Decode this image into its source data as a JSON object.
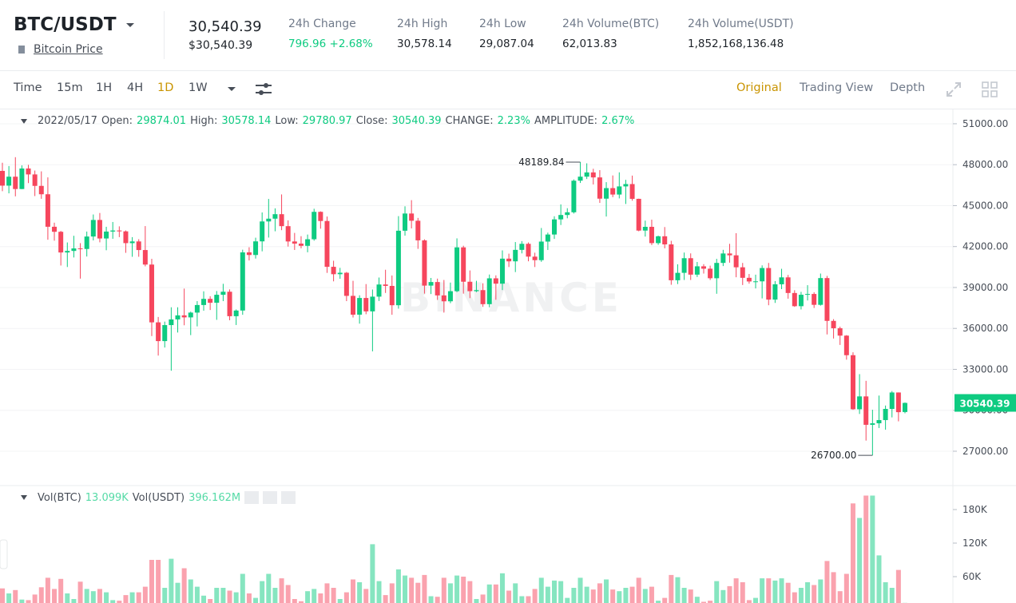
{
  "header": {
    "pair": "BTC/USDT",
    "name": "Bitcoin Price",
    "last_price": "30,540.39",
    "last_price_usd": "$30,540.39",
    "stats": [
      {
        "label": "24h Change",
        "value": "796.96 +2.68%"
      },
      {
        "label": "24h High",
        "value": "30,578.14"
      },
      {
        "label": "24h Low",
        "value": "29,087.04"
      },
      {
        "label": "24h Volume(BTC)",
        "value": "62,013.83"
      },
      {
        "label": "24h Volume(USDT)",
        "value": "1,852,168,136.48"
      }
    ]
  },
  "toolbar": {
    "intervals": [
      "Time",
      "15m",
      "1H",
      "4H",
      "1D",
      "1W"
    ],
    "active_interval": "1D",
    "views": [
      "Original",
      "Trading View",
      "Depth"
    ],
    "active_view": "Original"
  },
  "chart_data": [
    {
      "type": "candlestick",
      "up_color": "#0ecb81",
      "down_color": "#f6465d",
      "grid": true,
      "watermark": "BINANCE",
      "legend": {
        "date": "2022/05/17",
        "open_label": "Open:",
        "high_label": "High:",
        "low_label": "Low:",
        "close_label": "Close:",
        "change_label": "CHANGE:",
        "change": "2.23%",
        "amplitude_label": "AMPLITUDE:",
        "amplitude": "2.67%"
      },
      "open": [
        47545,
        46464,
        47120,
        46216,
        47722,
        47286,
        46446,
        45832,
        43451,
        43082,
        41566,
        41679,
        41864,
        41822,
        42735,
        43949,
        42592,
        43099,
        43177,
        43114,
        42250,
        42375,
        41744,
        40680,
        36445,
        35071,
        36244,
        36660,
        36958,
        36809,
        37160,
        37716,
        38166,
        37881,
        38466,
        38690,
        36896,
        37311,
        41574,
        41382,
        42380,
        43840,
        44043,
        44372,
        43495,
        42373,
        42217,
        42053,
        42535,
        44544,
        43873,
        40515,
        39974,
        40080,
        38386,
        37008,
        38231,
        37250,
        38328,
        39219,
        39116,
        37700,
        43160,
        44421,
        43892,
        42454,
        39137,
        39400,
        38420,
        37988,
        38730,
        41941,
        39422,
        38730,
        38807,
        37778,
        39671,
        39280,
        41114,
        40917,
        41757,
        42201,
        41262,
        41002,
        42364,
        42882,
        43991,
        44313,
        44511,
        46827,
        47122,
        47434,
        47067,
        45510,
        46283,
        45811,
        46407,
        46580,
        45497,
        43170,
        43445,
        42252,
        42753,
        42158,
        39530,
        40074,
        41147,
        39942,
        40552,
        40378,
        39678,
        40801,
        41493,
        41358,
        40480,
        39709,
        39441,
        39450,
        40426,
        38112,
        39235,
        39742,
        38596,
        37630,
        38468,
        38525,
        37729,
        39690,
        36552,
        36013,
        35472,
        34038,
        30076,
        31018,
        28936,
        29047,
        29283,
        30101,
        31305,
        29874.01
      ],
      "high": [
        48140,
        47900,
        48550,
        47950,
        47990,
        47570,
        47510,
        47070,
        43750,
        43145,
        42300,
        42790,
        42250,
        43100,
        44350,
        44460,
        43450,
        43800,
        43480,
        43180,
        42690,
        42540,
        43500,
        41100,
        36840,
        36500,
        37550,
        37550,
        38920,
        37230,
        38000,
        38720,
        38360,
        38740,
        39270,
        38860,
        37390,
        41770,
        41950,
        42650,
        44500,
        45490,
        44800,
        45820,
        43920,
        43000,
        42760,
        42880,
        44770,
        44580,
        44200,
        40960,
        40440,
        40140,
        39490,
        38430,
        39250,
        38850,
        39730,
        40300,
        39880,
        44230,
        44950,
        45400,
        44100,
        42530,
        39700,
        39650,
        39550,
        39360,
        42600,
        42060,
        40250,
        39490,
        39310,
        39950,
        39890,
        41720,
        41480,
        42330,
        42400,
        42300,
        41550,
        43360,
        43020,
        44220,
        45090,
        44810,
        46920,
        48189.84,
        48100,
        47700,
        47600,
        46720,
        47210,
        47440,
        46890,
        47200,
        45510,
        43900,
        43970,
        42800,
        43430,
        42420,
        40700,
        41560,
        41500,
        40870,
        40710,
        40600,
        41100,
        41760,
        42200,
        42980,
        40800,
        39990,
        39940,
        40620,
        40800,
        39470,
        40370,
        39920,
        38800,
        38680,
        39170,
        38650,
        40020,
        39850,
        36680,
        36130,
        35510,
        34250,
        32650,
        32160,
        30040,
        31080,
        30350,
        31410,
        31310,
        30578.14
      ],
      "low": [
        46060,
        45900,
        45680,
        46210,
        46650,
        45700,
        45500,
        42500,
        42430,
        40610,
        40500,
        41200,
        39650,
        41270,
        42450,
        42310,
        41730,
        42570,
        42690,
        41540,
        41250,
        41250,
        40550,
        35440,
        34010,
        34600,
        32900,
        35700,
        36230,
        35510,
        36150,
        37300,
        37350,
        36630,
        38000,
        36600,
        36250,
        37000,
        40980,
        41120,
        41650,
        42660,
        43120,
        43200,
        42000,
        41750,
        41870,
        41580,
        42430,
        43310,
        40070,
        39450,
        39640,
        38000,
        36800,
        36350,
        37040,
        34320,
        38010,
        38600,
        37000,
        37450,
        42800,
        43330,
        41830,
        38550,
        38520,
        38090,
        37160,
        37850,
        38660,
        38550,
        38220,
        38660,
        37580,
        37550,
        38100,
        38810,
        40500,
        40130,
        41500,
        40920,
        40500,
        40880,
        41750,
        42560,
        43580,
        44070,
        44420,
        46660,
        46950,
        46550,
        45200,
        44200,
        45620,
        45530,
        45120,
        45360,
        43120,
        42730,
        42110,
        42130,
        41870,
        39200,
        39250,
        39550,
        39550,
        39770,
        40020,
        39550,
        38540,
        40570,
        40820,
        39750,
        39180,
        39280,
        38930,
        38200,
        37700,
        37870,
        38880,
        38180,
        37580,
        37390,
        38050,
        37500,
        37670,
        35560,
        35260,
        34790,
        33710,
        30030,
        29730,
        27780,
        26700,
        28700,
        28580,
        29480,
        29190,
        29780.97
      ],
      "close": [
        46464,
        47120,
        46216,
        47722,
        47286,
        46446,
        45832,
        43451,
        43082,
        41566,
        41679,
        41864,
        41822,
        42735,
        43949,
        42592,
        43099,
        43177,
        43114,
        42250,
        42375,
        41744,
        40680,
        36445,
        35071,
        36244,
        36660,
        36958,
        36809,
        37160,
        37716,
        38166,
        37881,
        38466,
        38690,
        36896,
        37311,
        41574,
        41382,
        42380,
        43840,
        44043,
        44372,
        43495,
        42373,
        42217,
        42053,
        42535,
        44544,
        43873,
        40515,
        39974,
        40080,
        38386,
        37008,
        38231,
        37250,
        38328,
        39219,
        39116,
        37700,
        43160,
        44421,
        43892,
        42454,
        39137,
        39400,
        38420,
        37988,
        38730,
        41941,
        39422,
        38730,
        38807,
        37778,
        39671,
        39280,
        41114,
        40917,
        41757,
        42201,
        41262,
        41002,
        42364,
        42882,
        43991,
        44313,
        44511,
        46827,
        47122,
        47434,
        47067,
        45510,
        46283,
        45811,
        46407,
        46580,
        45497,
        43170,
        43445,
        42252,
        42753,
        42158,
        39530,
        40074,
        41147,
        39942,
        40552,
        40378,
        39678,
        40801,
        41493,
        41358,
        40480,
        39709,
        39441,
        39450,
        40426,
        38112,
        39235,
        39742,
        38596,
        37630,
        38468,
        38525,
        37729,
        39690,
        36552,
        36013,
        35472,
        34038,
        30076,
        31018,
        28936,
        29047,
        29283,
        30101,
        31305,
        29862,
        30540.39
      ],
      "ylim": [
        24540,
        52050
      ],
      "yticks": [
        {
          "value": 27000,
          "label": "27000.00"
        },
        {
          "value": 30000,
          "label": "30000.00"
        },
        {
          "value": 33000,
          "label": "33000.00"
        },
        {
          "value": 36000,
          "label": "36000.00"
        },
        {
          "value": 39000,
          "label": "39000.00"
        },
        {
          "value": 42000,
          "label": "42000.00"
        },
        {
          "value": 45000,
          "label": "45000.00"
        },
        {
          "value": 48000,
          "label": "48000.00"
        },
        {
          "value": 51000,
          "label": "51000.00"
        }
      ],
      "max_marker": {
        "value": 48189.84,
        "label": "48189.84"
      },
      "min_marker": {
        "value": 26700,
        "label": "26700.00"
      },
      "last_tag": {
        "value": 30540.39,
        "label": "30540.39"
      }
    },
    {
      "type": "bar",
      "name": "Vol(BTC)",
      "current_label": "13.099K",
      "quote_name": "Vol(USDT)",
      "quote_value": "396.162M",
      "opacity": 0.5,
      "values": [
        39000,
        30000,
        36000,
        19000,
        18000,
        28000,
        41000,
        58000,
        38000,
        56000,
        30000,
        20000,
        51000,
        38000,
        34000,
        38000,
        32000,
        18000,
        17000,
        27000,
        32000,
        32000,
        42000,
        90000,
        90000,
        40000,
        92000,
        49000,
        75000,
        55000,
        42000,
        26000,
        20000,
        40000,
        40000,
        35000,
        32000,
        65000,
        30000,
        22000,
        52000,
        65000,
        40000,
        57000,
        45000,
        20000,
        16000,
        34000,
        38000,
        30000,
        48000,
        40000,
        20000,
        32000,
        55000,
        50000,
        38000,
        118000,
        52000,
        27000,
        48000,
        73000,
        62000,
        58000,
        49000,
        63000,
        25000,
        24000,
        58000,
        48000,
        62000,
        60000,
        52000,
        20000,
        28000,
        46000,
        46000,
        66000,
        35000,
        48000,
        25000,
        25000,
        38000,
        58000,
        42000,
        53000,
        52000,
        22000,
        40000,
        58000,
        42000,
        37000,
        48000,
        55000,
        37000,
        34000,
        40000,
        42000,
        58000,
        38000,
        42000,
        17000,
        22000,
        63000,
        59000,
        40000,
        37000,
        24000,
        15000,
        17000,
        52000,
        36000,
        43000,
        57000,
        50000,
        18000,
        22000,
        57000,
        57000,
        53000,
        57000,
        49000,
        32000,
        40000,
        50000,
        45000,
        55000,
        88000,
        68000,
        34000,
        65000,
        191000,
        165000,
        205000,
        205000,
        98000,
        50000,
        40000,
        72000,
        13099
      ],
      "ylim": [
        12860,
        220000
      ],
      "yticks": [
        {
          "value": 60000,
          "label": "60K"
        },
        {
          "value": 120000,
          "label": "120K"
        },
        {
          "value": 180000,
          "label": "180K"
        }
      ]
    }
  ]
}
